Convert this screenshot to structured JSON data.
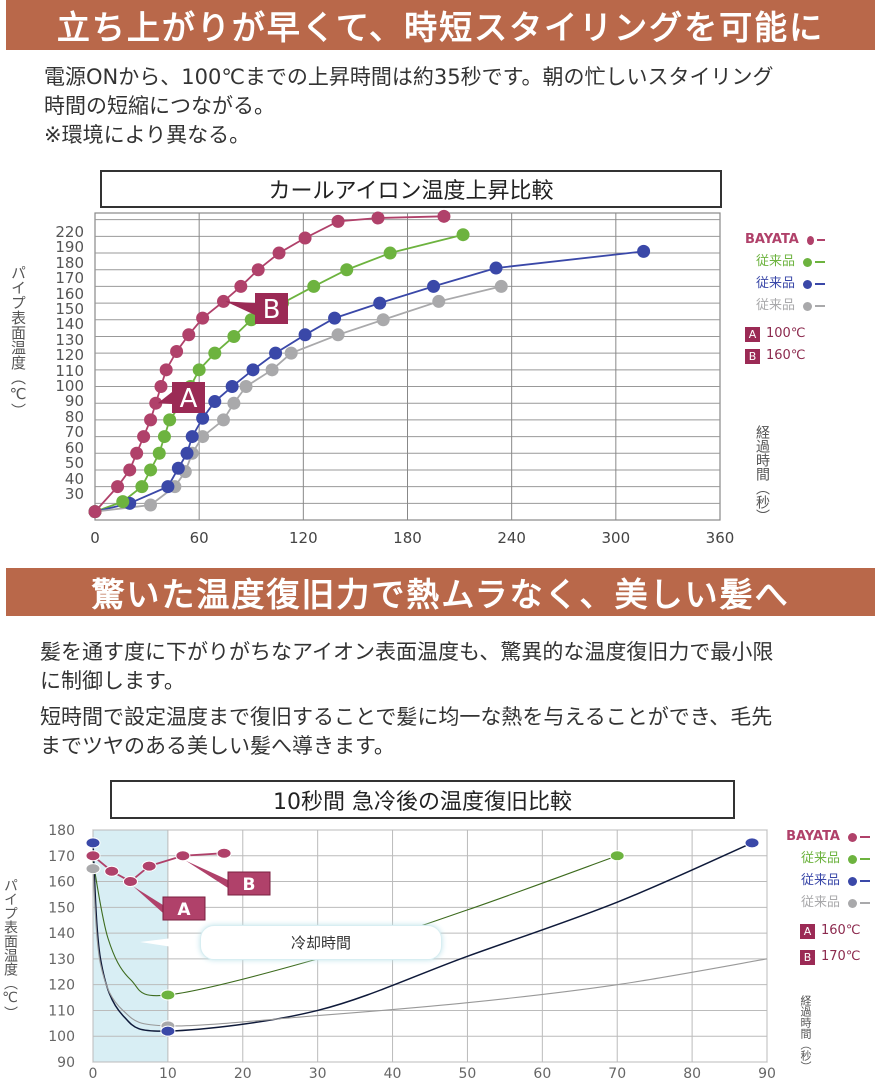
{
  "section1": {
    "banner": "立ち上がりが早くて、時短スタイリングを可能に",
    "lines": [
      "電源ONから、100℃までの上昇時間は約35秒です。朝の忙しいスタイリング",
      "時間の短縮につながる。",
      "※環境により異なる。"
    ]
  },
  "section2": {
    "banner": "驚いた温度復旧力で熱ムラなく、美しい髪へ",
    "lines": [
      "髪を通す度に下がりがちなアイオン表面温度も、驚異的な温度復旧力で最小限",
      "に制御します。",
      "短時間で設定温度まで復旧することで髪に均一な熱を与えることができ、毛先",
      "までツヤのある美しい髪へ導きます。"
    ]
  },
  "colors": {
    "banner": "#b9684a",
    "bayata": "#b0416a",
    "green": "#6db33f",
    "blue": "#3a48a8",
    "gray": "#a9a9ab",
    "marker": "#9b2a55"
  },
  "chart_data": [
    {
      "type": "line",
      "title": "カールアイロン温度上昇比較",
      "ylabel": "パイプ表面温度（℃）",
      "xlabel": "経過時間（秒）",
      "xlim": [
        0,
        360
      ],
      "ylim": [
        30,
        214
      ],
      "xticks": [
        0,
        60,
        120,
        180,
        240,
        300,
        360
      ],
      "yticklabels": [
        "220",
        "190",
        "180",
        "170",
        "160",
        "150",
        "140",
        "130",
        "120",
        "110",
        "100",
        "90",
        "80",
        "70",
        "60",
        "50",
        "40",
        "30"
      ],
      "grid": true,
      "legend_position": "right",
      "series": [
        {
          "name": "BAYATA",
          "color": "#b0416a",
          "points": [
            [
              0,
              35
            ],
            [
              13,
              50
            ],
            [
              20,
              60
            ],
            [
              24,
              70
            ],
            [
              28,
              80
            ],
            [
              32,
              90
            ],
            [
              35,
              100
            ],
            [
              38,
              110
            ],
            [
              41,
              120
            ],
            [
              47,
              131
            ],
            [
              54,
              141
            ],
            [
              62,
              151
            ],
            [
              74,
              161
            ],
            [
              84,
              170
            ],
            [
              94,
              180
            ],
            [
              106,
              190
            ],
            [
              121,
              199
            ],
            [
              140,
              209
            ],
            [
              163,
              211
            ],
            [
              201,
              212
            ]
          ]
        },
        {
          "name": "従来品",
          "color": "#6db33f",
          "points": [
            [
              0,
              35
            ],
            [
              16,
              41
            ],
            [
              27,
              50
            ],
            [
              32,
              60
            ],
            [
              37,
              70
            ],
            [
              40,
              80
            ],
            [
              43,
              90
            ],
            [
              50,
              100
            ],
            [
              55,
              110
            ],
            [
              60,
              120
            ],
            [
              69,
              130
            ],
            [
              80,
              140
            ],
            [
              90,
              150
            ],
            [
              108,
              160
            ],
            [
              126,
              170
            ],
            [
              145,
              180
            ],
            [
              170,
              190
            ],
            [
              212,
              201
            ]
          ]
        },
        {
          "name": "従来品",
          "color": "#3a48a8",
          "points": [
            [
              0,
              35
            ],
            [
              20,
              40
            ],
            [
              42,
              50
            ],
            [
              48,
              61
            ],
            [
              53,
              70
            ],
            [
              56,
              80
            ],
            [
              62,
              91
            ],
            [
              69,
              101
            ],
            [
              79,
              110
            ],
            [
              91,
              120
            ],
            [
              104,
              130
            ],
            [
              121,
              141
            ],
            [
              138,
              151
            ],
            [
              164,
              160
            ],
            [
              195,
              170
            ],
            [
              231,
              181
            ],
            [
              316,
              191
            ]
          ]
        },
        {
          "name": "従来品",
          "color": "#a9a9ab",
          "points": [
            [
              0,
              35
            ],
            [
              32,
              39
            ],
            [
              46,
              50
            ],
            [
              52,
              59
            ],
            [
              56,
              70
            ],
            [
              62,
              80
            ],
            [
              74,
              90
            ],
            [
              80,
              100
            ],
            [
              87,
              110
            ],
            [
              102,
              120
            ],
            [
              113,
              130
            ],
            [
              140,
              141
            ],
            [
              166,
              150
            ],
            [
              198,
              161
            ],
            [
              234,
              170
            ]
          ]
        }
      ],
      "annotations": [
        {
          "label": "A",
          "text": "100℃",
          "at": [
            35,
            100
          ]
        },
        {
          "label": "B",
          "text": "160℃",
          "at": [
            74,
            161
          ]
        }
      ]
    },
    {
      "type": "line",
      "title": "10秒間 急冷後の温度復旧比較",
      "ylabel": "パイプ表面温度（℃）",
      "xlabel": "経過時間（秒）",
      "xlim": [
        0,
        90
      ],
      "ylim": [
        90,
        180
      ],
      "xticks": [
        0,
        10,
        20,
        30,
        40,
        50,
        60,
        70,
        80,
        90
      ],
      "yticks": [
        180,
        170,
        160,
        150,
        140,
        130,
        120,
        110,
        100,
        90
      ],
      "grid": true,
      "shaded_region": {
        "x": [
          0,
          10
        ],
        "label": "冷却時間"
      },
      "legend_position": "right",
      "series": [
        {
          "name": "BAYATA",
          "color": "#b0416a",
          "smooth": false,
          "points": [
            [
              0,
              170
            ],
            [
              2.5,
              164
            ],
            [
              5,
              160
            ],
            [
              7.5,
              166
            ],
            [
              12,
              170
            ],
            [
              17.5,
              171
            ]
          ],
          "markers": [
            0,
            1,
            2,
            3,
            4,
            5
          ]
        },
        {
          "name": "従来品",
          "color": "#6db33f",
          "smooth": true,
          "points": [
            [
              0,
              168
            ],
            [
              2,
              138
            ],
            [
              5,
              122
            ],
            [
              10,
              116
            ],
            [
              30,
              130
            ],
            [
              50,
              149
            ],
            [
              70,
              170
            ]
          ],
          "markers": [
            3,
            6
          ]
        },
        {
          "name": "従来品",
          "color": "#3a48a8",
          "smooth": true,
          "points": [
            [
              0,
              175
            ],
            [
              1,
              130
            ],
            [
              4,
              108
            ],
            [
              10,
              102
            ],
            [
              30,
              110
            ],
            [
              50,
              131
            ],
            [
              70,
              152
            ],
            [
              88,
              175
            ]
          ],
          "markers": [
            0,
            3,
            7
          ]
        },
        {
          "name": "従来品",
          "color": "#a9a9ab",
          "smooth": true,
          "points": [
            [
              0,
              165
            ],
            [
              1,
              128
            ],
            [
              4,
              110
            ],
            [
              10,
              104
            ],
            [
              30,
              108
            ],
            [
              50,
              113
            ],
            [
              70,
              120
            ],
            [
              90,
              130
            ]
          ],
          "markers": [
            0,
            3
          ]
        }
      ],
      "annotations": [
        {
          "label": "A",
          "text": "160℃",
          "at": [
            5,
            160
          ]
        },
        {
          "label": "B",
          "text": "170℃",
          "at": [
            12,
            170
          ]
        }
      ]
    }
  ]
}
